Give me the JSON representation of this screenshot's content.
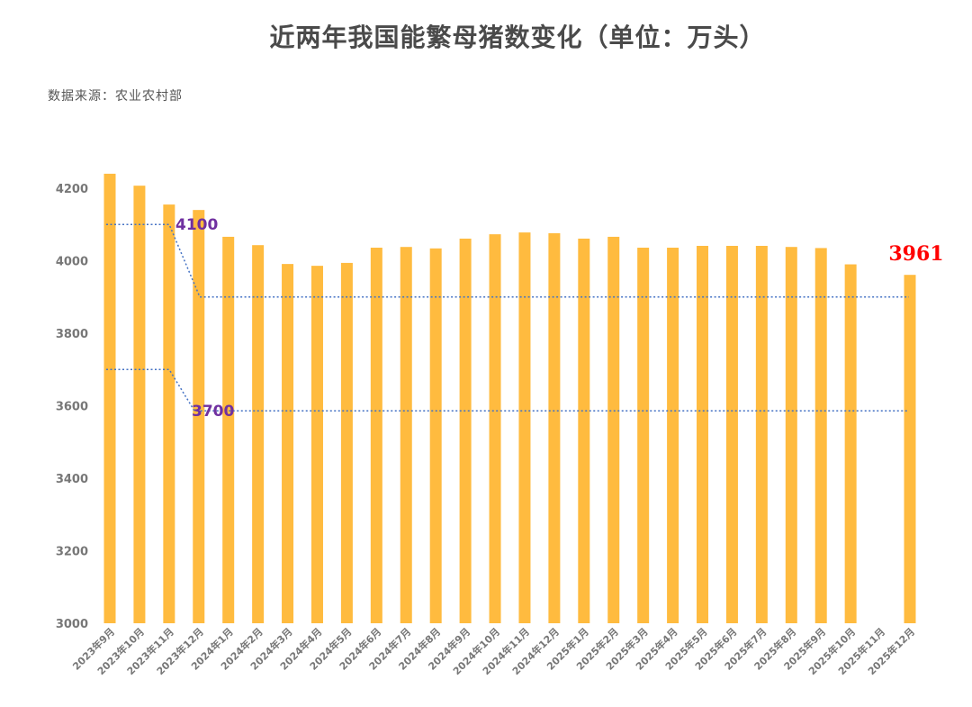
{
  "chart_data": {
    "type": "bar",
    "title": "近两年我国能繁母猪数变化（单位：万头）",
    "source": "数据来源：农业农村部",
    "categories": [
      "2023年9月",
      "2023年10月",
      "2023年11月",
      "2023年12月",
      "2024年1月",
      "2024年2月",
      "2024年3月",
      "2024年4月",
      "2024年5月",
      "2024年6月",
      "2024年7月",
      "2024年8月",
      "2024年9月",
      "2024年10月",
      "2024年11月",
      "2024年12月",
      "2025年1月",
      "2025年2月",
      "2025年3月",
      "2025年4月",
      "2025年5月",
      "2025年6月",
      "2025年7月",
      "2025年8月",
      "2025年9月",
      "2025年10月",
      "2025年11月",
      "2025年12月"
    ],
    "values": [
      4240,
      4207,
      4155,
      4140,
      4066,
      4043,
      3991,
      3986,
      3994,
      4036,
      4038,
      4034,
      4061,
      4073,
      4078,
      4076,
      4061,
      4066,
      4036,
      4036,
      4041,
      4041,
      4041,
      4038,
      4035,
      3990,
      null,
      3961
    ],
    "ylim": [
      3000,
      4250
    ],
    "yticks": [
      3000,
      3200,
      3400,
      3600,
      3800,
      4000,
      4200
    ],
    "grid": false,
    "bar_color": "#FFBB3F",
    "annotations": [
      {
        "label": "4100",
        "color": "#7030A0",
        "line_color": "#4472C4",
        "from_value": 4100,
        "to_value": 3900
      },
      {
        "label": "3700",
        "color": "#7030A0",
        "line_color": "#4472C4",
        "from_value": 3700,
        "to_value": 3586
      }
    ],
    "last_value_label": {
      "text": "3961",
      "color": "#FF0000"
    }
  }
}
